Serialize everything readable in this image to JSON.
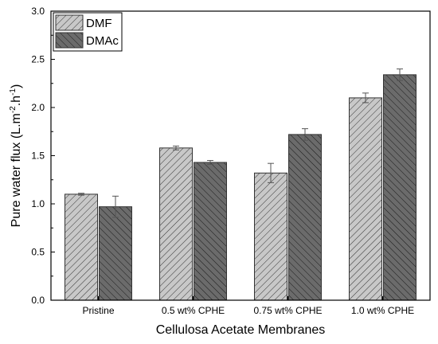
{
  "chart_data": {
    "type": "bar",
    "categories": [
      "Pristine",
      "0.5 wt% CPHE",
      "0.75 wt% CPHE",
      "1.0 wt% CPHE"
    ],
    "series": [
      {
        "name": "DMF",
        "values": [
          1.1,
          1.58,
          1.32,
          2.1
        ],
        "errors": [
          0.01,
          0.02,
          0.1,
          0.05
        ],
        "color": "#c8c8c8",
        "hatch": "forward-diagonal"
      },
      {
        "name": "DMAc",
        "values": [
          0.97,
          1.43,
          1.72,
          2.34
        ],
        "errors": [
          0.11,
          0.02,
          0.06,
          0.06
        ],
        "color": "#6b6b6b",
        "hatch": "back-diagonal"
      }
    ],
    "xlabel": "Cellulosa Acetate Membranes",
    "ylabel_parts": [
      "Pure water flux (L.m",
      "-2",
      ".h",
      "-1",
      ")"
    ],
    "ylim": [
      0.0,
      3.0
    ],
    "yticks": [
      "0.0",
      "0.5",
      "1.0",
      "1.5",
      "2.0",
      "2.5",
      "3.0"
    ],
    "legend_position": "top-left",
    "error_bars": true
  }
}
